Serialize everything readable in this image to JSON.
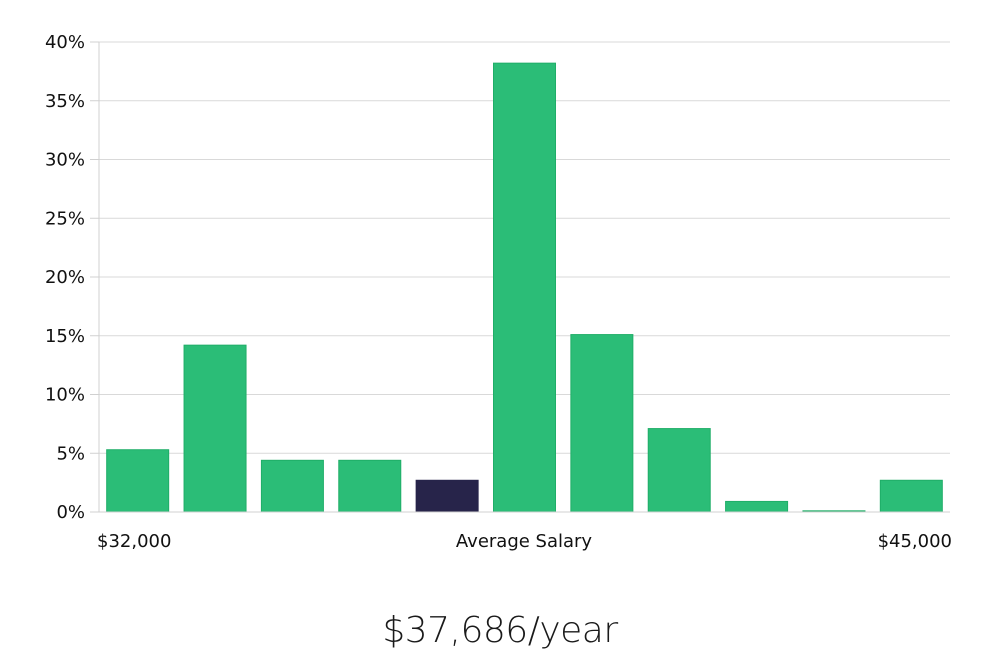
{
  "chart_data": {
    "type": "bar",
    "categories": [
      "1",
      "2",
      "3",
      "4",
      "5",
      "6",
      "7",
      "8",
      "9",
      "10",
      "11"
    ],
    "values": [
      5.3,
      14.2,
      4.4,
      4.4,
      2.7,
      38.2,
      15.1,
      7.1,
      0.9,
      0.1,
      2.7
    ],
    "highlight_index": 4,
    "ylim": [
      0,
      40
    ],
    "yticks": [
      "0%",
      "5%",
      "10%",
      "15%",
      "20%",
      "25%",
      "30%",
      "35%",
      "40%"
    ],
    "ytick_values": [
      0,
      5,
      10,
      15,
      20,
      25,
      30,
      35,
      40
    ],
    "x_min_label": "$32,000",
    "x_center_label": "Average Salary",
    "x_max_label": "$45,000",
    "grid": true,
    "colors": {
      "bar": "#2bbd77",
      "bar_stroke": "#1fae68",
      "highlight": "#27244a",
      "grid": "#d9d9d9",
      "axis": "#d0d0d0"
    }
  },
  "summary": {
    "salary": "$37,686/year"
  }
}
